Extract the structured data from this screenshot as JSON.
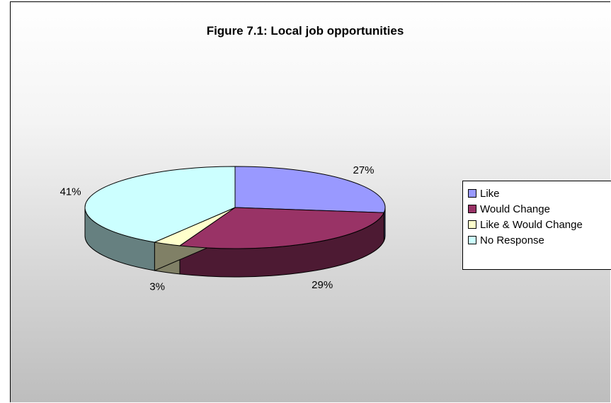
{
  "chart_data": {
    "type": "pie",
    "title": "Figure 7.1: Local job opportunities",
    "categories": [
      "Like",
      "Would Change",
      "Like & Would Change",
      "No Response"
    ],
    "values": [
      27,
      29,
      3,
      41
    ],
    "labels": [
      "27%",
      "29%",
      "3%",
      "41%"
    ],
    "colors": [
      "#9999ff",
      "#993366",
      "#ffffcc",
      "#ccffff"
    ],
    "side_colors": [
      "#4d4d80",
      "#4d1a33",
      "#808066",
      "#668080"
    ],
    "legend_position": "right",
    "style": "3d-exploded-pie"
  }
}
